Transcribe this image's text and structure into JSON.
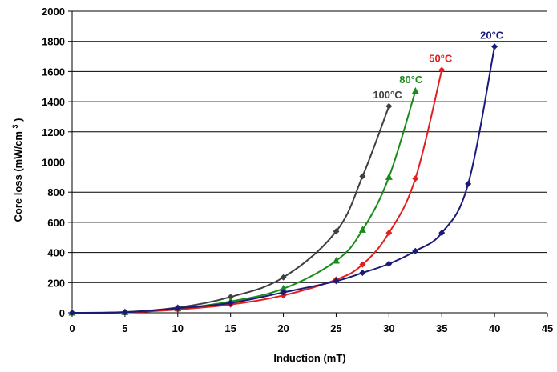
{
  "chart_data": {
    "type": "line",
    "xlabel": "Induction (mT)",
    "ylabel": "Core loss (mW/cm",
    "ylabel_superscript": "3",
    "ylabel_suffix": ")",
    "xlim": [
      0,
      45
    ],
    "ylim": [
      0,
      2000
    ],
    "xticks": [
      0,
      5,
      10,
      15,
      20,
      25,
      30,
      35,
      40,
      45
    ],
    "yticks": [
      0,
      200,
      400,
      600,
      800,
      1000,
      1200,
      1400,
      1600,
      1800,
      2000
    ],
    "grid": "horizontal",
    "series": [
      {
        "name": "100°C",
        "color": "#404040",
        "marker": "diamond",
        "x": [
          0,
          5,
          10,
          15,
          20,
          25,
          27.5,
          30
        ],
        "y": [
          0,
          5,
          35,
          105,
          235,
          540,
          905,
          1370
        ]
      },
      {
        "name": "80°C",
        "color": "#1a8a1a",
        "marker": "triangle",
        "x": [
          0,
          5,
          10,
          15,
          20,
          25,
          27.5,
          30,
          32.5
        ],
        "y": [
          0,
          3,
          28,
          75,
          160,
          345,
          550,
          900,
          1470
        ]
      },
      {
        "name": "50°C",
        "color": "#e02020",
        "marker": "diamond",
        "x": [
          0,
          5,
          10,
          15,
          20,
          25,
          27.5,
          30,
          32.5,
          35
        ],
        "y": [
          0,
          2,
          22,
          55,
          115,
          220,
          320,
          530,
          890,
          1610
        ]
      },
      {
        "name": "20°C",
        "color": "#1a1a7a",
        "marker": "diamond",
        "x": [
          0,
          5,
          10,
          15,
          20,
          25,
          27.5,
          30,
          32.5,
          35,
          37.5,
          40
        ],
        "y": [
          0,
          3,
          30,
          65,
          135,
          210,
          265,
          325,
          410,
          530,
          855,
          1765
        ]
      }
    ]
  }
}
